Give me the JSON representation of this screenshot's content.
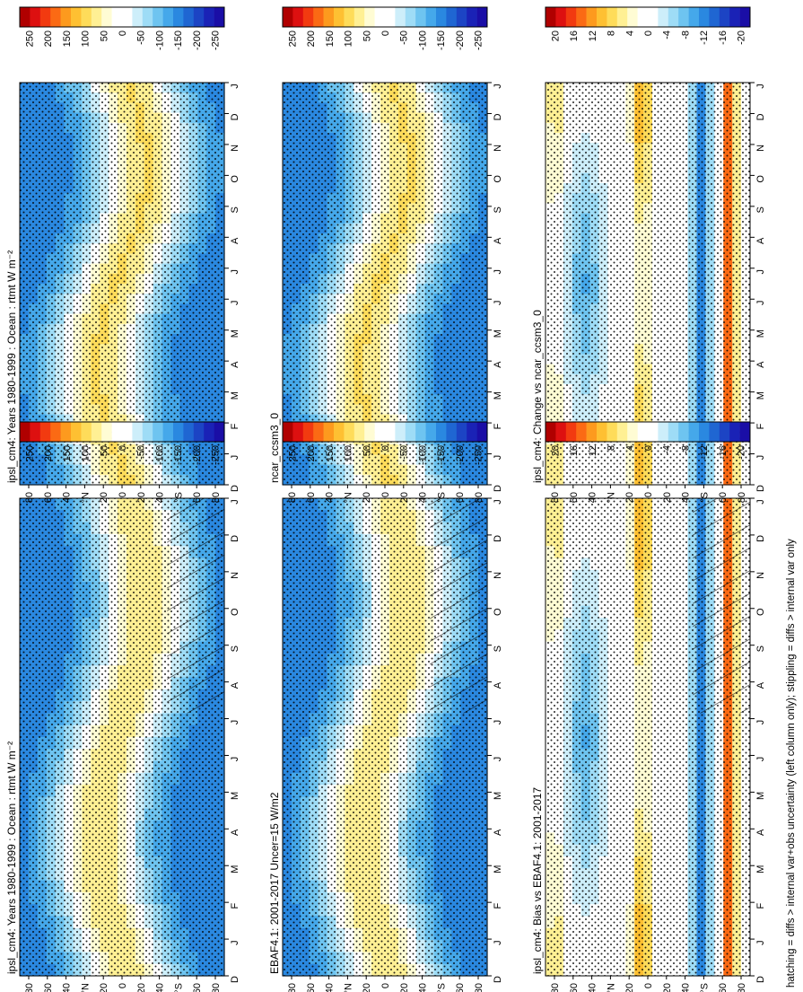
{
  "footnote": "hatching = diffs > internal var+obs uncertainty (left column only); stippling = diffs > internal var only",
  "colorbars": [
    {
      "id": "cb-full",
      "labels": [
        "250",
        "200",
        "150",
        "100",
        "50",
        "0",
        "-50",
        "-100",
        "-150",
        "-200",
        "-250"
      ],
      "colors": [
        "#b00000",
        "#dd1010",
        "#f23a10",
        "#fb6a14",
        "#fd9a1e",
        "#fec032",
        "#fedc5a",
        "#fff094",
        "#fffcd4",
        "#ffffff",
        "#ffffff",
        "#cdeefa",
        "#9edcf6",
        "#6ec4f0",
        "#45a8ea",
        "#2a88e0",
        "#1f66d2",
        "#1c44c4",
        "#1a22b6",
        "#1a0ea6"
      ]
    },
    {
      "id": "cb-diff",
      "labels": [
        "20",
        "16",
        "12",
        "8",
        "4",
        "0",
        "-4",
        "-8",
        "-12",
        "-16",
        "-20"
      ],
      "colors": [
        "#b00000",
        "#dd1010",
        "#f23a10",
        "#fb6a14",
        "#fd9a1e",
        "#fec032",
        "#fedc5a",
        "#fff094",
        "#fffcd4",
        "#ffffff",
        "#ffffff",
        "#cdeefa",
        "#9edcf6",
        "#6ec4f0",
        "#45a8ea",
        "#2a88e0",
        "#1f66d2",
        "#1c44c4",
        "#1a22b6",
        "#1a0ea6"
      ]
    }
  ],
  "chart_data": [
    {
      "type": "heatmap",
      "title": "ipsl_cm4: Years 1980-1999 : Ocean : rtmt W m⁻²",
      "x_ticks": [
        "D",
        "J",
        "F",
        "M",
        "A",
        "M",
        "J",
        "J",
        "A",
        "S",
        "O",
        "N",
        "D",
        "J"
      ],
      "y_ticks": [
        "80",
        "60",
        "40",
        "°N",
        "20",
        "0",
        "20",
        "40",
        "°S",
        "60",
        "80"
      ],
      "colorbar": "cb-full",
      "hatching": true,
      "stippling": true
    },
    {
      "type": "heatmap",
      "title": "ipsl_cm4: Years 1980-1999 : Ocean : rtmt W m⁻²",
      "x_ticks": [
        "D",
        "J",
        "F",
        "M",
        "A",
        "M",
        "J",
        "J",
        "A",
        "S",
        "O",
        "N",
        "D",
        "J"
      ],
      "y_ticks": [
        "80",
        "60",
        "40",
        "°N",
        "20",
        "0",
        "20",
        "40",
        "°S",
        "60",
        "80"
      ],
      "colorbar": "cb-full",
      "hatching": false,
      "stippling": true
    },
    {
      "type": "heatmap",
      "title": "EBAF4.1: 2001-2017 Uncer=15 W/m2",
      "x_ticks": [
        "D",
        "J",
        "F",
        "M",
        "A",
        "M",
        "J",
        "J",
        "A",
        "S",
        "O",
        "N",
        "D",
        "J"
      ],
      "y_ticks": [
        "80",
        "60",
        "40",
        "°N",
        "20",
        "0",
        "20",
        "40",
        "°S",
        "60",
        "80"
      ],
      "colorbar": "cb-full",
      "hatching": true,
      "stippling": true
    },
    {
      "type": "heatmap",
      "title": "ncar_ccsm3_0",
      "x_ticks": [
        "D",
        "J",
        "F",
        "M",
        "A",
        "M",
        "J",
        "J",
        "A",
        "S",
        "O",
        "N",
        "D",
        "J"
      ],
      "y_ticks": [
        "80",
        "60",
        "40",
        "°N",
        "20",
        "0",
        "20",
        "40",
        "°S",
        "60",
        "80"
      ],
      "colorbar": "cb-full",
      "hatching": false,
      "stippling": true
    },
    {
      "type": "heatmap",
      "title": "ipsl_cm4: Bias vs EBAF4.1: 2001-2017",
      "x_ticks": [
        "D",
        "J",
        "F",
        "M",
        "A",
        "M",
        "J",
        "J",
        "A",
        "S",
        "O",
        "N",
        "D",
        "J"
      ],
      "y_ticks": [
        "80",
        "60",
        "40",
        "°N",
        "20",
        "0",
        "20",
        "40",
        "°S",
        "60",
        "80"
      ],
      "colorbar": "cb-diff",
      "hatching": true,
      "stippling": true
    },
    {
      "type": "heatmap",
      "title": "ipsl_cm4: Change vs ncar_ccsm3_0",
      "x_ticks": [
        "D",
        "J",
        "F",
        "M",
        "A",
        "M",
        "J",
        "J",
        "A",
        "S",
        "O",
        "N",
        "D",
        "J"
      ],
      "y_ticks": [
        "80",
        "60",
        "40",
        "°N",
        "20",
        "0",
        "20",
        "40",
        "°S",
        "60",
        "80"
      ],
      "colorbar": "cb-diff",
      "hatching": false,
      "stippling": true
    }
  ]
}
